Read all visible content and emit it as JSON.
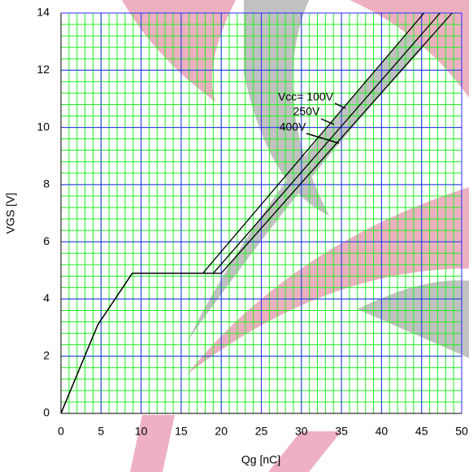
{
  "chart_data": {
    "type": "line",
    "x_label": "Qg [nC]",
    "y_label": "VGS [V]",
    "xlim": [
      0,
      50
    ],
    "ylim": [
      0,
      14
    ],
    "xticks": [
      0,
      5,
      10,
      15,
      20,
      25,
      30,
      35,
      40,
      45,
      50
    ],
    "yticks": [
      0,
      2,
      4,
      6,
      8,
      10,
      12,
      14
    ],
    "grid": true,
    "grid_color": "#2b2bff",
    "minor_grid_color": "#22ee22",
    "x_minor_step": 1,
    "y_minor_step": 0.4,
    "series": [
      {
        "name": "Vcc= 100V",
        "color": "#000000",
        "x": [
          0,
          4.6,
          8.9,
          17.7,
          45.3
        ],
        "values": [
          0,
          3.1,
          4.9,
          4.9,
          14
        ]
      },
      {
        "name": "250V",
        "color": "#000000",
        "x": [
          0,
          4.6,
          8.9,
          19.0,
          47.3
        ],
        "values": [
          0,
          3.1,
          4.9,
          4.9,
          14
        ]
      },
      {
        "name": "400V",
        "color": "#000000",
        "x": [
          0,
          4.6,
          8.9,
          20.0,
          48.8
        ],
        "values": [
          0,
          3.1,
          4.9,
          4.9,
          14
        ]
      }
    ]
  }
}
